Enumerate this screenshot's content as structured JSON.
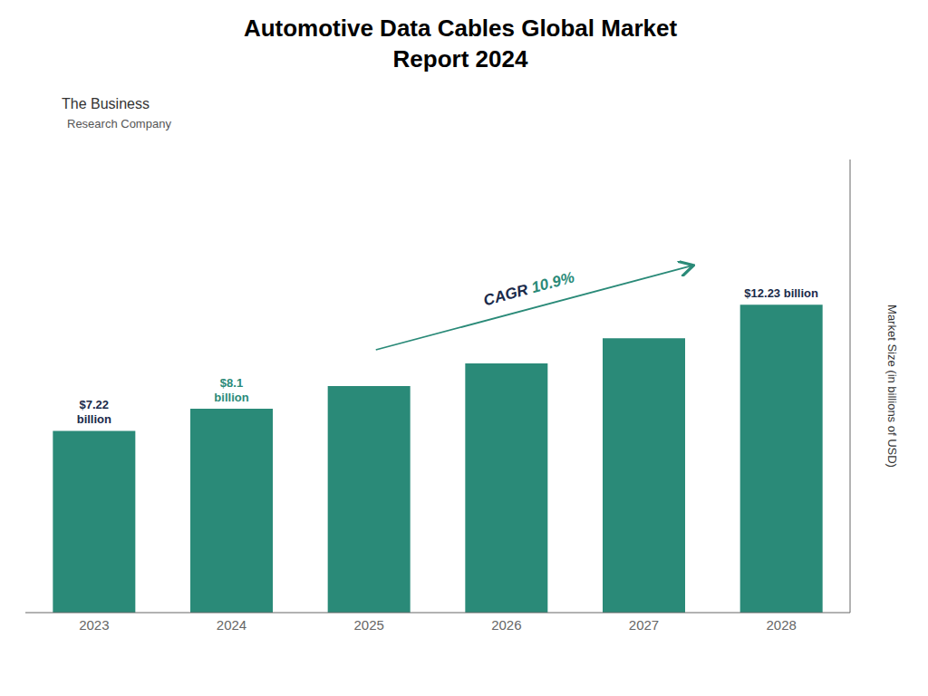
{
  "chart_data": {
    "type": "bar",
    "title": "Automotive Data Cables Global Market\nReport 2024",
    "categories": [
      "2023",
      "2024",
      "2025",
      "2026",
      "2027",
      "2028"
    ],
    "values": [
      7.22,
      8.1,
      9.0,
      9.9,
      10.9,
      12.23
    ],
    "color": "#2a8a78",
    "ylabel": "Market Size (in billions of USD)",
    "ylim": [
      0,
      18
    ],
    "yticks": [],
    "tick_labels": "x",
    "grid": false,
    "annotations": [
      {
        "text": "The Business"
      },
      {
        "text": "Research Company"
      },
      {
        "text": "$7.22\nbillion",
        "category": "2023",
        "color": "#1a2a4a"
      },
      {
        "text": "$8.1\nbillion",
        "category": "2024",
        "color": "#2a8a78"
      },
      {
        "text": "$12.23 billion",
        "category": "2028",
        "color": "#1a2a4a"
      },
      {
        "text": "CAGR 10.9%",
        "category": [
          "2025",
          "2027"
        ],
        "color": [
          "#1a2a4a",
          "#2a8a78"
        ]
      }
    ]
  }
}
